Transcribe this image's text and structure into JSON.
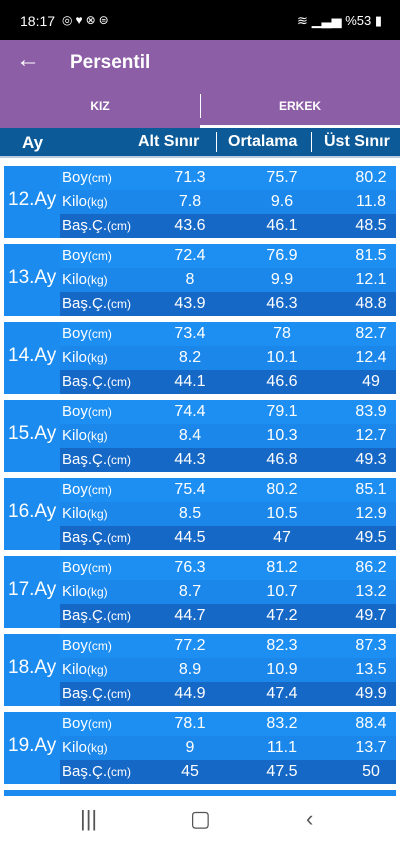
{
  "statusbar": {
    "time": "18:17",
    "battery": "%53"
  },
  "header": {
    "title": "Persentil"
  },
  "tabs": [
    "KIZ",
    "ERKEK"
  ],
  "columns": {
    "ay": "Ay",
    "alt": "Alt Sınır",
    "ort": "Ortalama",
    "ust": "Üst Sınır"
  },
  "labels": {
    "boy": "Boy",
    "boy_unit": "(cm)",
    "kilo": "Kilo",
    "kilo_unit": "(kg)",
    "bas": "Baş.Ç.",
    "bas_unit": "(cm)"
  },
  "rows": [
    {
      "month": "12.Ay",
      "boy": [
        "71.3",
        "75.7",
        "80.2"
      ],
      "kilo": [
        "7.8",
        "9.6",
        "11.8"
      ],
      "bas": [
        "43.6",
        "46.1",
        "48.5"
      ]
    },
    {
      "month": "13.Ay",
      "boy": [
        "72.4",
        "76.9",
        "81.5"
      ],
      "kilo": [
        "8",
        "9.9",
        "12.1"
      ],
      "bas": [
        "43.9",
        "46.3",
        "48.8"
      ]
    },
    {
      "month": "14.Ay",
      "boy": [
        "73.4",
        "78",
        "82.7"
      ],
      "kilo": [
        "8.2",
        "10.1",
        "12.4"
      ],
      "bas": [
        "44.1",
        "46.6",
        "49"
      ]
    },
    {
      "month": "15.Ay",
      "boy": [
        "74.4",
        "79.1",
        "83.9"
      ],
      "kilo": [
        "8.4",
        "10.3",
        "12.7"
      ],
      "bas": [
        "44.3",
        "46.8",
        "49.3"
      ]
    },
    {
      "month": "16.Ay",
      "boy": [
        "75.4",
        "80.2",
        "85.1"
      ],
      "kilo": [
        "8.5",
        "10.5",
        "12.9"
      ],
      "bas": [
        "44.5",
        "47",
        "49.5"
      ]
    },
    {
      "month": "17.Ay",
      "boy": [
        "76.3",
        "81.2",
        "86.2"
      ],
      "kilo": [
        "8.7",
        "10.7",
        "13.2"
      ],
      "bas": [
        "44.7",
        "47.2",
        "49.7"
      ]
    },
    {
      "month": "18.Ay",
      "boy": [
        "77.2",
        "82.3",
        "87.3"
      ],
      "kilo": [
        "8.9",
        "10.9",
        "13.5"
      ],
      "bas": [
        "44.9",
        "47.4",
        "49.9"
      ]
    },
    {
      "month": "19.Ay",
      "boy": [
        "78.1",
        "83.2",
        "88.4"
      ],
      "kilo": [
        "9",
        "11.1",
        "13.7"
      ],
      "bas": [
        "45",
        "47.5",
        "50"
      ]
    }
  ]
}
